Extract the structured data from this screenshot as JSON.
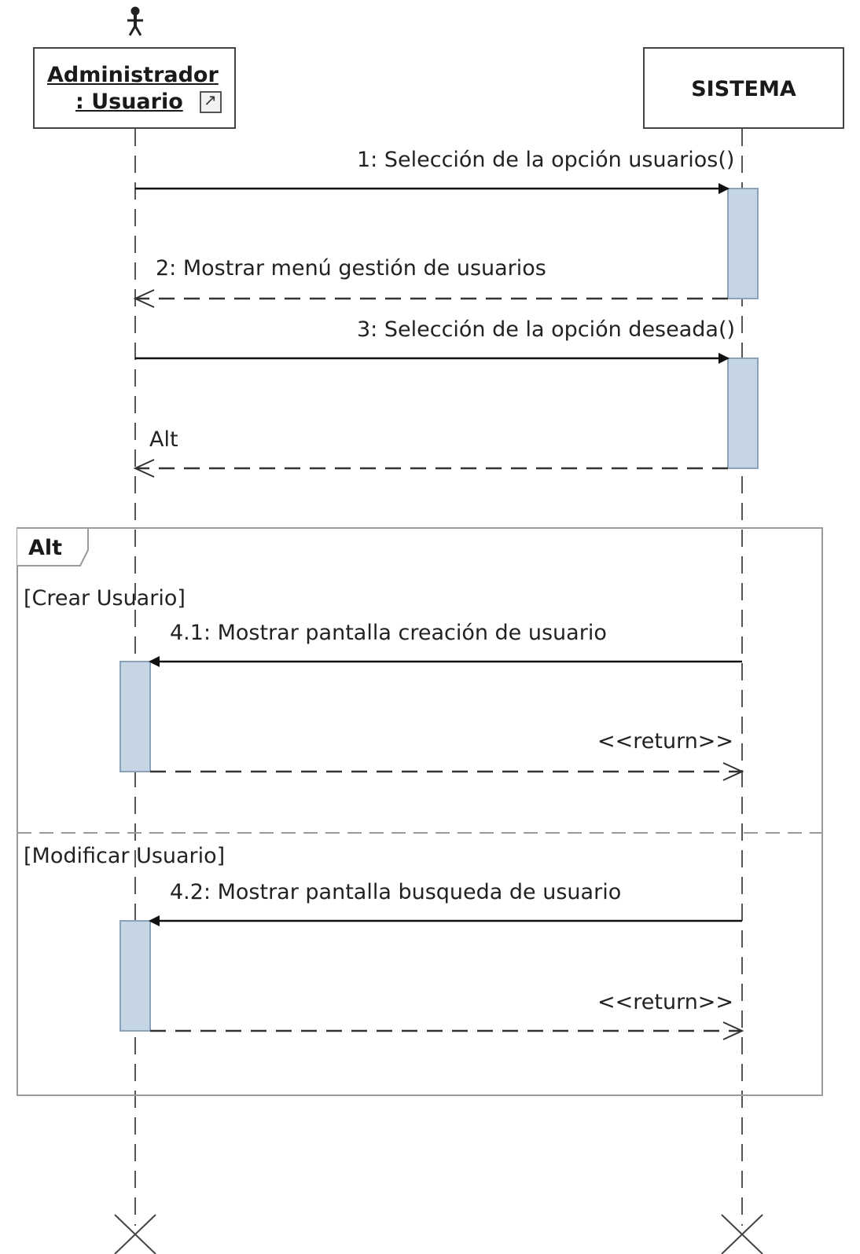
{
  "lifelines": {
    "actor": {
      "line1": "Administrador",
      "line2": ": Usuario",
      "icon": "actor-stick-figure-icon",
      "link_icon": "shortcut-link-icon"
    },
    "system": {
      "name": "SISTEMA"
    }
  },
  "messages": [
    {
      "id": "m1",
      "label": "1: Selección de la opción usuarios()",
      "from": "actor",
      "to": "system",
      "kind": "sync"
    },
    {
      "id": "m2",
      "label": "2: Mostrar menú gestión de usuarios",
      "from": "system",
      "to": "actor",
      "kind": "return"
    },
    {
      "id": "m3",
      "label": "3: Selección de la opción deseada()",
      "from": "actor",
      "to": "system",
      "kind": "sync"
    },
    {
      "id": "m4",
      "label": "Alt",
      "from": "system",
      "to": "actor",
      "kind": "return"
    }
  ],
  "fragment": {
    "operator": "Alt",
    "operands": [
      {
        "guard": "[Crear Usuario]",
        "messages": [
          {
            "id": "m41",
            "label": "4.1: Mostrar pantalla creación de usuario",
            "kind": "sync"
          },
          {
            "id": "m41r",
            "label": "<<return>>",
            "kind": "return"
          }
        ]
      },
      {
        "guard": "[Modificar Usuario]",
        "messages": [
          {
            "id": "m42",
            "label": "4.2: Mostrar pantalla busqueda de usuario",
            "kind": "sync"
          },
          {
            "id": "m42r",
            "label": "<<return>>",
            "kind": "return"
          }
        ]
      }
    ]
  },
  "colors": {
    "activation_fill": "#c5d5e3",
    "activation_stroke": "#8aa3bb",
    "line": "#222222",
    "frame": "#9a9a9a"
  }
}
